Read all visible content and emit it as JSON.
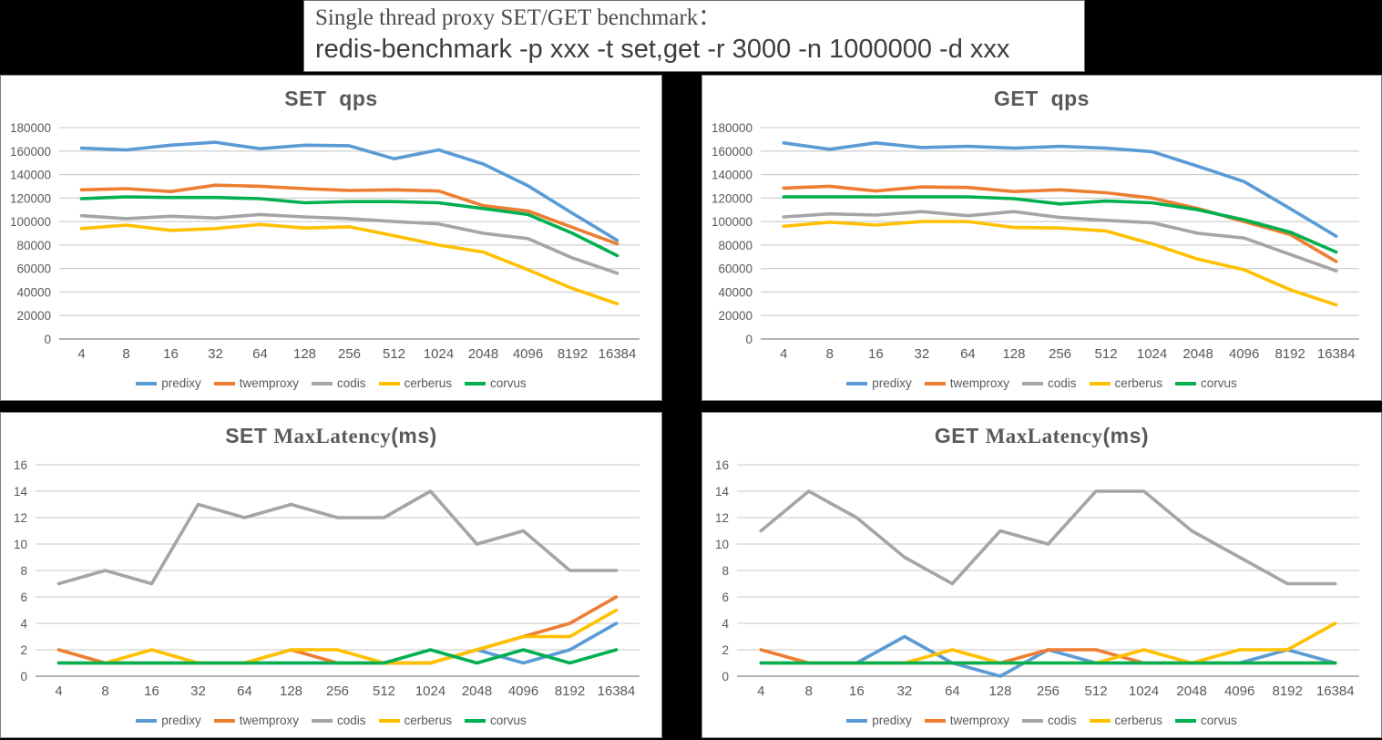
{
  "title_box": {
    "line1": "Single thread proxy SET/GET benchmark：",
    "line2": "redis-benchmark -p xxx -t set,get -r 3000 -n 1000000 -d xxx"
  },
  "colors": {
    "predixy": "#5B9BD5",
    "twemproxy": "#ED7D31",
    "codis": "#A5A5A5",
    "cerberus": "#FFC000",
    "corvus": "#00B050",
    "grid": "#c9c9c9",
    "axis": "#9a9a9a",
    "axis_text": "#595959",
    "title_text": "#595959"
  },
  "legend": [
    "predixy",
    "twemproxy",
    "codis",
    "cerberus",
    "corvus"
  ],
  "categories": [
    "4",
    "8",
    "16",
    "32",
    "64",
    "128",
    "256",
    "512",
    "1024",
    "2048",
    "4096",
    "8192",
    "16384"
  ],
  "chart_data": [
    {
      "id": "set-qps",
      "type": "line",
      "title_parts": [
        {
          "text": "SET  qps",
          "serif": false
        }
      ],
      "xlabel": "",
      "ylabel": "",
      "ylim": [
        0,
        180000
      ],
      "y_ticks": [
        0,
        20000,
        40000,
        60000,
        80000,
        100000,
        120000,
        140000,
        160000,
        180000
      ],
      "grid": true,
      "legend_position": "bottom",
      "series": [
        {
          "name": "predixy",
          "values": [
            162500,
            161000,
            165000,
            167500,
            162000,
            165000,
            164500,
            153500,
            161000,
            149000,
            130500,
            107000,
            84000
          ]
        },
        {
          "name": "twemproxy",
          "values": [
            127000,
            128000,
            125500,
            131000,
            130000,
            128000,
            126500,
            127000,
            126000,
            113500,
            109000,
            95000,
            81000
          ]
        },
        {
          "name": "codis",
          "values": [
            105000,
            102500,
            104500,
            103000,
            106000,
            104000,
            102500,
            100000,
            98000,
            90000,
            85500,
            69000,
            56000
          ]
        },
        {
          "name": "cerberus",
          "values": [
            94000,
            97000,
            92500,
            94000,
            97500,
            94500,
            95500,
            88000,
            80000,
            74000,
            59000,
            43000,
            30000
          ]
        },
        {
          "name": "corvus",
          "values": [
            119500,
            121000,
            120500,
            120500,
            119500,
            116000,
            117000,
            117000,
            116000,
            111000,
            106000,
            90000,
            71000
          ]
        }
      ]
    },
    {
      "id": "get-qps",
      "type": "line",
      "title_parts": [
        {
          "text": "GET  qps",
          "serif": false
        }
      ],
      "xlabel": "",
      "ylabel": "",
      "ylim": [
        0,
        180000
      ],
      "y_ticks": [
        0,
        20000,
        40000,
        60000,
        80000,
        100000,
        120000,
        140000,
        160000,
        180000
      ],
      "grid": true,
      "legend_position": "bottom",
      "series": [
        {
          "name": "predixy",
          "values": [
            167000,
            161500,
            167000,
            163000,
            164000,
            162500,
            164000,
            162500,
            159500,
            147000,
            134000,
            111000,
            87500
          ]
        },
        {
          "name": "twemproxy",
          "values": [
            128500,
            130000,
            126000,
            129500,
            129000,
            125500,
            127000,
            124500,
            120000,
            111000,
            100000,
            89000,
            66000
          ]
        },
        {
          "name": "codis",
          "values": [
            104000,
            106500,
            105500,
            108500,
            105000,
            108500,
            103500,
            101000,
            99000,
            90000,
            86000,
            72000,
            58000
          ]
        },
        {
          "name": "cerberus",
          "values": [
            96000,
            99500,
            97000,
            100000,
            100000,
            95000,
            94500,
            92000,
            81000,
            68000,
            59000,
            42000,
            29000
          ]
        },
        {
          "name": "corvus",
          "values": [
            121000,
            121000,
            121000,
            121000,
            121000,
            119500,
            115000,
            117500,
            116000,
            110000,
            101500,
            91000,
            74000
          ]
        }
      ]
    },
    {
      "id": "set-lat",
      "type": "line",
      "title_parts": [
        {
          "text": "SET ",
          "serif": false
        },
        {
          "text": "MaxLatency",
          "serif": true
        },
        {
          "text": "(ms)",
          "serif": false
        }
      ],
      "xlabel": "",
      "ylabel": "",
      "ylim": [
        0,
        16
      ],
      "y_ticks": [
        0,
        2,
        4,
        6,
        8,
        10,
        12,
        14,
        16
      ],
      "grid": true,
      "legend_position": "bottom",
      "series": [
        {
          "name": "predixy",
          "values": [
            1,
            1,
            1,
            1,
            1,
            1,
            1,
            1,
            1,
            2,
            1,
            2,
            4
          ]
        },
        {
          "name": "twemproxy",
          "values": [
            2,
            1,
            1,
            1,
            1,
            2,
            1,
            1,
            1,
            2,
            3,
            4,
            6
          ]
        },
        {
          "name": "codis",
          "values": [
            7,
            8,
            7,
            13,
            12,
            13,
            12,
            12,
            14,
            10,
            11,
            8,
            8
          ]
        },
        {
          "name": "cerberus",
          "values": [
            1,
            1,
            2,
            1,
            1,
            2,
            2,
            1,
            1,
            2,
            3,
            3,
            5
          ]
        },
        {
          "name": "corvus",
          "values": [
            1,
            1,
            1,
            1,
            1,
            1,
            1,
            1,
            2,
            1,
            2,
            1,
            2
          ]
        }
      ]
    },
    {
      "id": "get-lat",
      "type": "line",
      "title_parts": [
        {
          "text": "GET ",
          "serif": false
        },
        {
          "text": "MaxLatency",
          "serif": true
        },
        {
          "text": "(ms)",
          "serif": false
        }
      ],
      "xlabel": "",
      "ylabel": "",
      "ylim": [
        0,
        16
      ],
      "y_ticks": [
        0,
        2,
        4,
        6,
        8,
        10,
        12,
        14,
        16
      ],
      "grid": true,
      "legend_position": "bottom",
      "series": [
        {
          "name": "predixy",
          "values": [
            1,
            1,
            1,
            3,
            1,
            0,
            2,
            1,
            1,
            1,
            1,
            2,
            1
          ]
        },
        {
          "name": "twemproxy",
          "values": [
            2,
            1,
            1,
            1,
            1,
            1,
            2,
            2,
            1,
            1,
            1,
            1,
            1
          ]
        },
        {
          "name": "codis",
          "values": [
            11,
            14,
            12,
            9,
            7,
            11,
            10,
            14,
            14,
            11,
            9,
            7,
            7
          ]
        },
        {
          "name": "cerberus",
          "values": [
            1,
            1,
            1,
            1,
            2,
            1,
            1,
            1,
            2,
            1,
            2,
            2,
            4
          ]
        },
        {
          "name": "corvus",
          "values": [
            1,
            1,
            1,
            1,
            1,
            1,
            1,
            1,
            1,
            1,
            1,
            1,
            1
          ]
        }
      ]
    }
  ]
}
